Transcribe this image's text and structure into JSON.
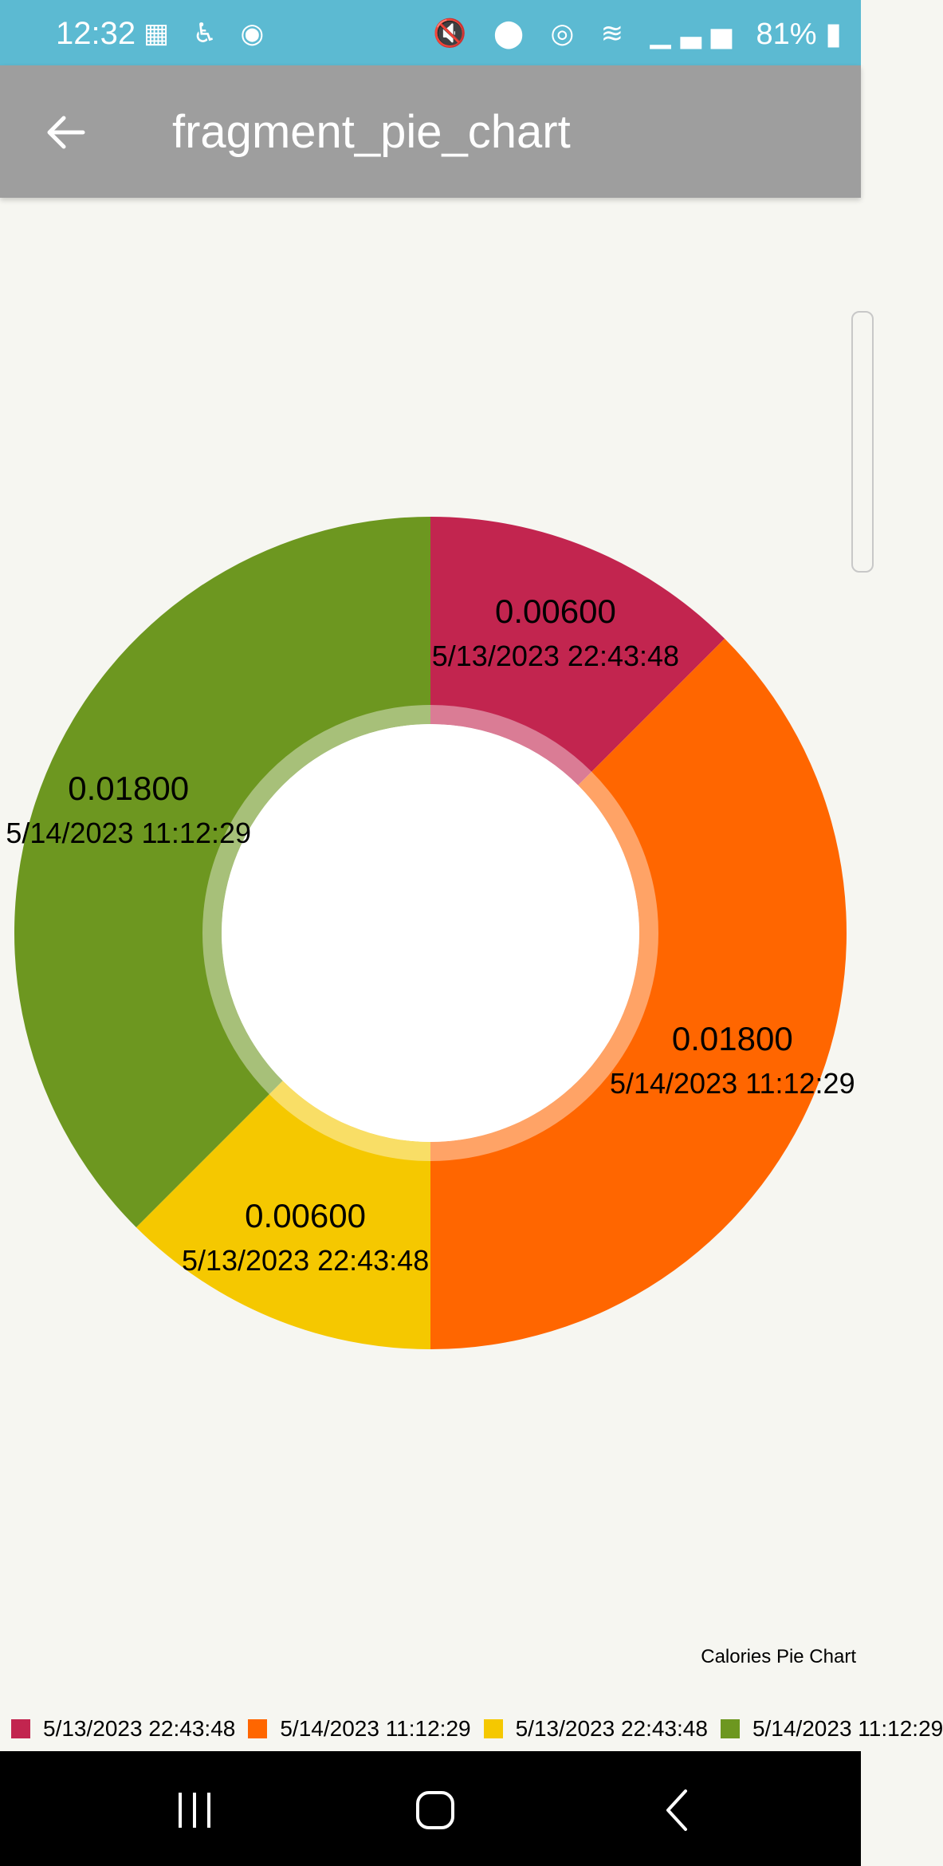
{
  "status_bar": {
    "time": "12:32",
    "left_icons": [
      "film-icon",
      "accessibility-icon",
      "game-icon"
    ],
    "right_icons": [
      "mute-icon",
      "location-icon",
      "hotspot-icon",
      "wifi-icon",
      "signal-icon"
    ],
    "battery_text": "81%"
  },
  "app_bar": {
    "title": "fragment_pie_chart"
  },
  "chart_data": {
    "type": "pie",
    "style": "donut",
    "slices": [
      {
        "value": 0.006,
        "value_label": "0.00600",
        "label": "5/13/2023 22:43:48",
        "color": "#c2254f"
      },
      {
        "value": 0.018,
        "value_label": "0.01800",
        "label": "5/14/2023 11:12:29",
        "color": "#ff6600"
      },
      {
        "value": 0.006,
        "value_label": "0.00600",
        "label": "5/13/2023 22:43:48",
        "color": "#f5c800"
      },
      {
        "value": 0.018,
        "value_label": "0.01800",
        "label": "5/14/2023 11:12:29",
        "color": "#6d9720"
      }
    ],
    "description": "Calories Pie Chart",
    "legend_position": "bottom-left",
    "legend_entries": [
      "5/13/2023 22:43:48",
      "5/14/2023 11:12:29",
      "5/13/2023 22:43:48",
      "5/14/2023 11:12:29"
    ],
    "hole_color": "#ffffff"
  }
}
